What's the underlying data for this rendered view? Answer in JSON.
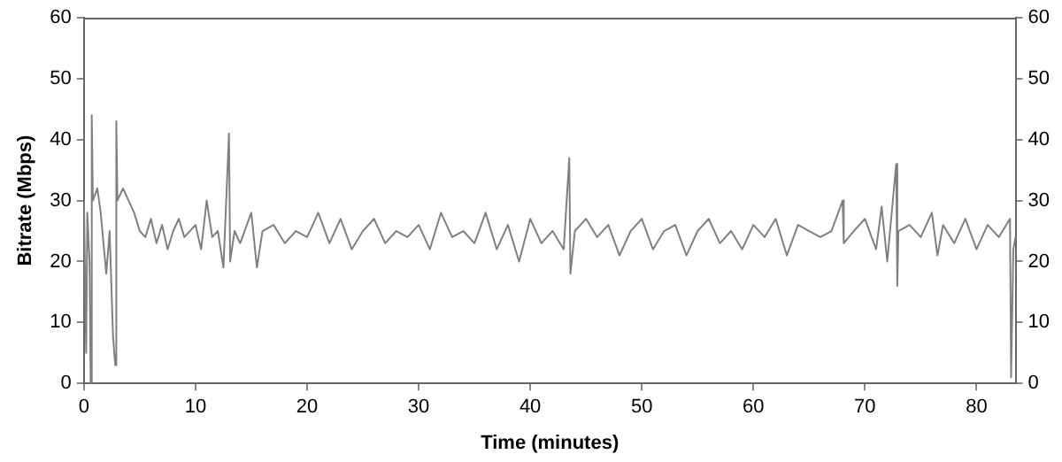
{
  "chart_data": {
    "type": "line",
    "xlabel": "Time (minutes)",
    "ylabel": "Bitrate (Mbps)",
    "xlim": [
      0,
      83.5
    ],
    "xticks": [
      0,
      10,
      20,
      30,
      40,
      50,
      60,
      70,
      80
    ],
    "ylim": [
      0,
      60
    ],
    "yticks": [
      0,
      10,
      20,
      30,
      40,
      50,
      60
    ],
    "y2lim": [
      0,
      60
    ],
    "y2ticks": [
      0,
      10,
      20,
      30,
      40,
      50,
      60
    ],
    "grid": false,
    "legend": false,
    "marker": "none",
    "line_style": "solid",
    "series": [
      {
        "color": "#808080",
        "x": [
          0,
          0.2,
          0.3,
          0.5,
          0.6,
          0.7,
          0.8,
          1.2,
          1.5,
          2,
          2.3,
          2.6,
          2.8,
          2.9,
          3,
          3.5,
          4,
          4.5,
          5,
          5.5,
          6,
          6.5,
          7,
          7.5,
          8,
          8.5,
          9,
          10,
          10.5,
          11,
          11.5,
          12,
          12.5,
          13,
          13.1,
          13.5,
          14,
          15,
          15.5,
          16,
          17,
          18,
          19,
          20,
          21,
          22,
          23,
          24,
          25,
          26,
          27,
          28,
          29,
          30,
          31,
          32,
          33,
          34,
          35,
          36,
          37,
          38,
          39,
          40,
          41,
          42,
          43,
          43.5,
          43.6,
          44,
          45,
          46,
          47,
          48,
          49,
          50,
          51,
          52,
          53,
          54,
          55,
          56,
          57,
          58,
          59,
          60,
          61,
          62,
          63,
          64,
          65,
          66,
          67,
          68,
          68.1,
          69,
          70,
          71,
          71.5,
          72,
          72.8,
          72.9,
          73,
          74,
          75,
          76,
          76.5,
          77,
          78,
          79,
          80,
          81,
          82,
          83,
          83.1,
          83.3,
          83.5
        ],
        "values": [
          30,
          5,
          28,
          20,
          0,
          44,
          30,
          32,
          28,
          18,
          25,
          8,
          3,
          43,
          30,
          32,
          30,
          28,
          25,
          24,
          27,
          23,
          26,
          22,
          25,
          27,
          24,
          26,
          22,
          30,
          24,
          25,
          19,
          41,
          20,
          25,
          23,
          28,
          19,
          25,
          26,
          23,
          25,
          24,
          28,
          23,
          27,
          22,
          25,
          27,
          23,
          25,
          24,
          26,
          22,
          28,
          24,
          25,
          23,
          28,
          22,
          26,
          20,
          27,
          23,
          25,
          22,
          37,
          18,
          25,
          27,
          24,
          26,
          21,
          25,
          27,
          22,
          25,
          26,
          21,
          25,
          27,
          23,
          25,
          22,
          26,
          24,
          27,
          21,
          26,
          25,
          24,
          25,
          30,
          23,
          25,
          27,
          22,
          29,
          20,
          36,
          16,
          25,
          26,
          24,
          28,
          21,
          26,
          23,
          27,
          22,
          26,
          24,
          27,
          1,
          22,
          24
        ]
      }
    ]
  }
}
